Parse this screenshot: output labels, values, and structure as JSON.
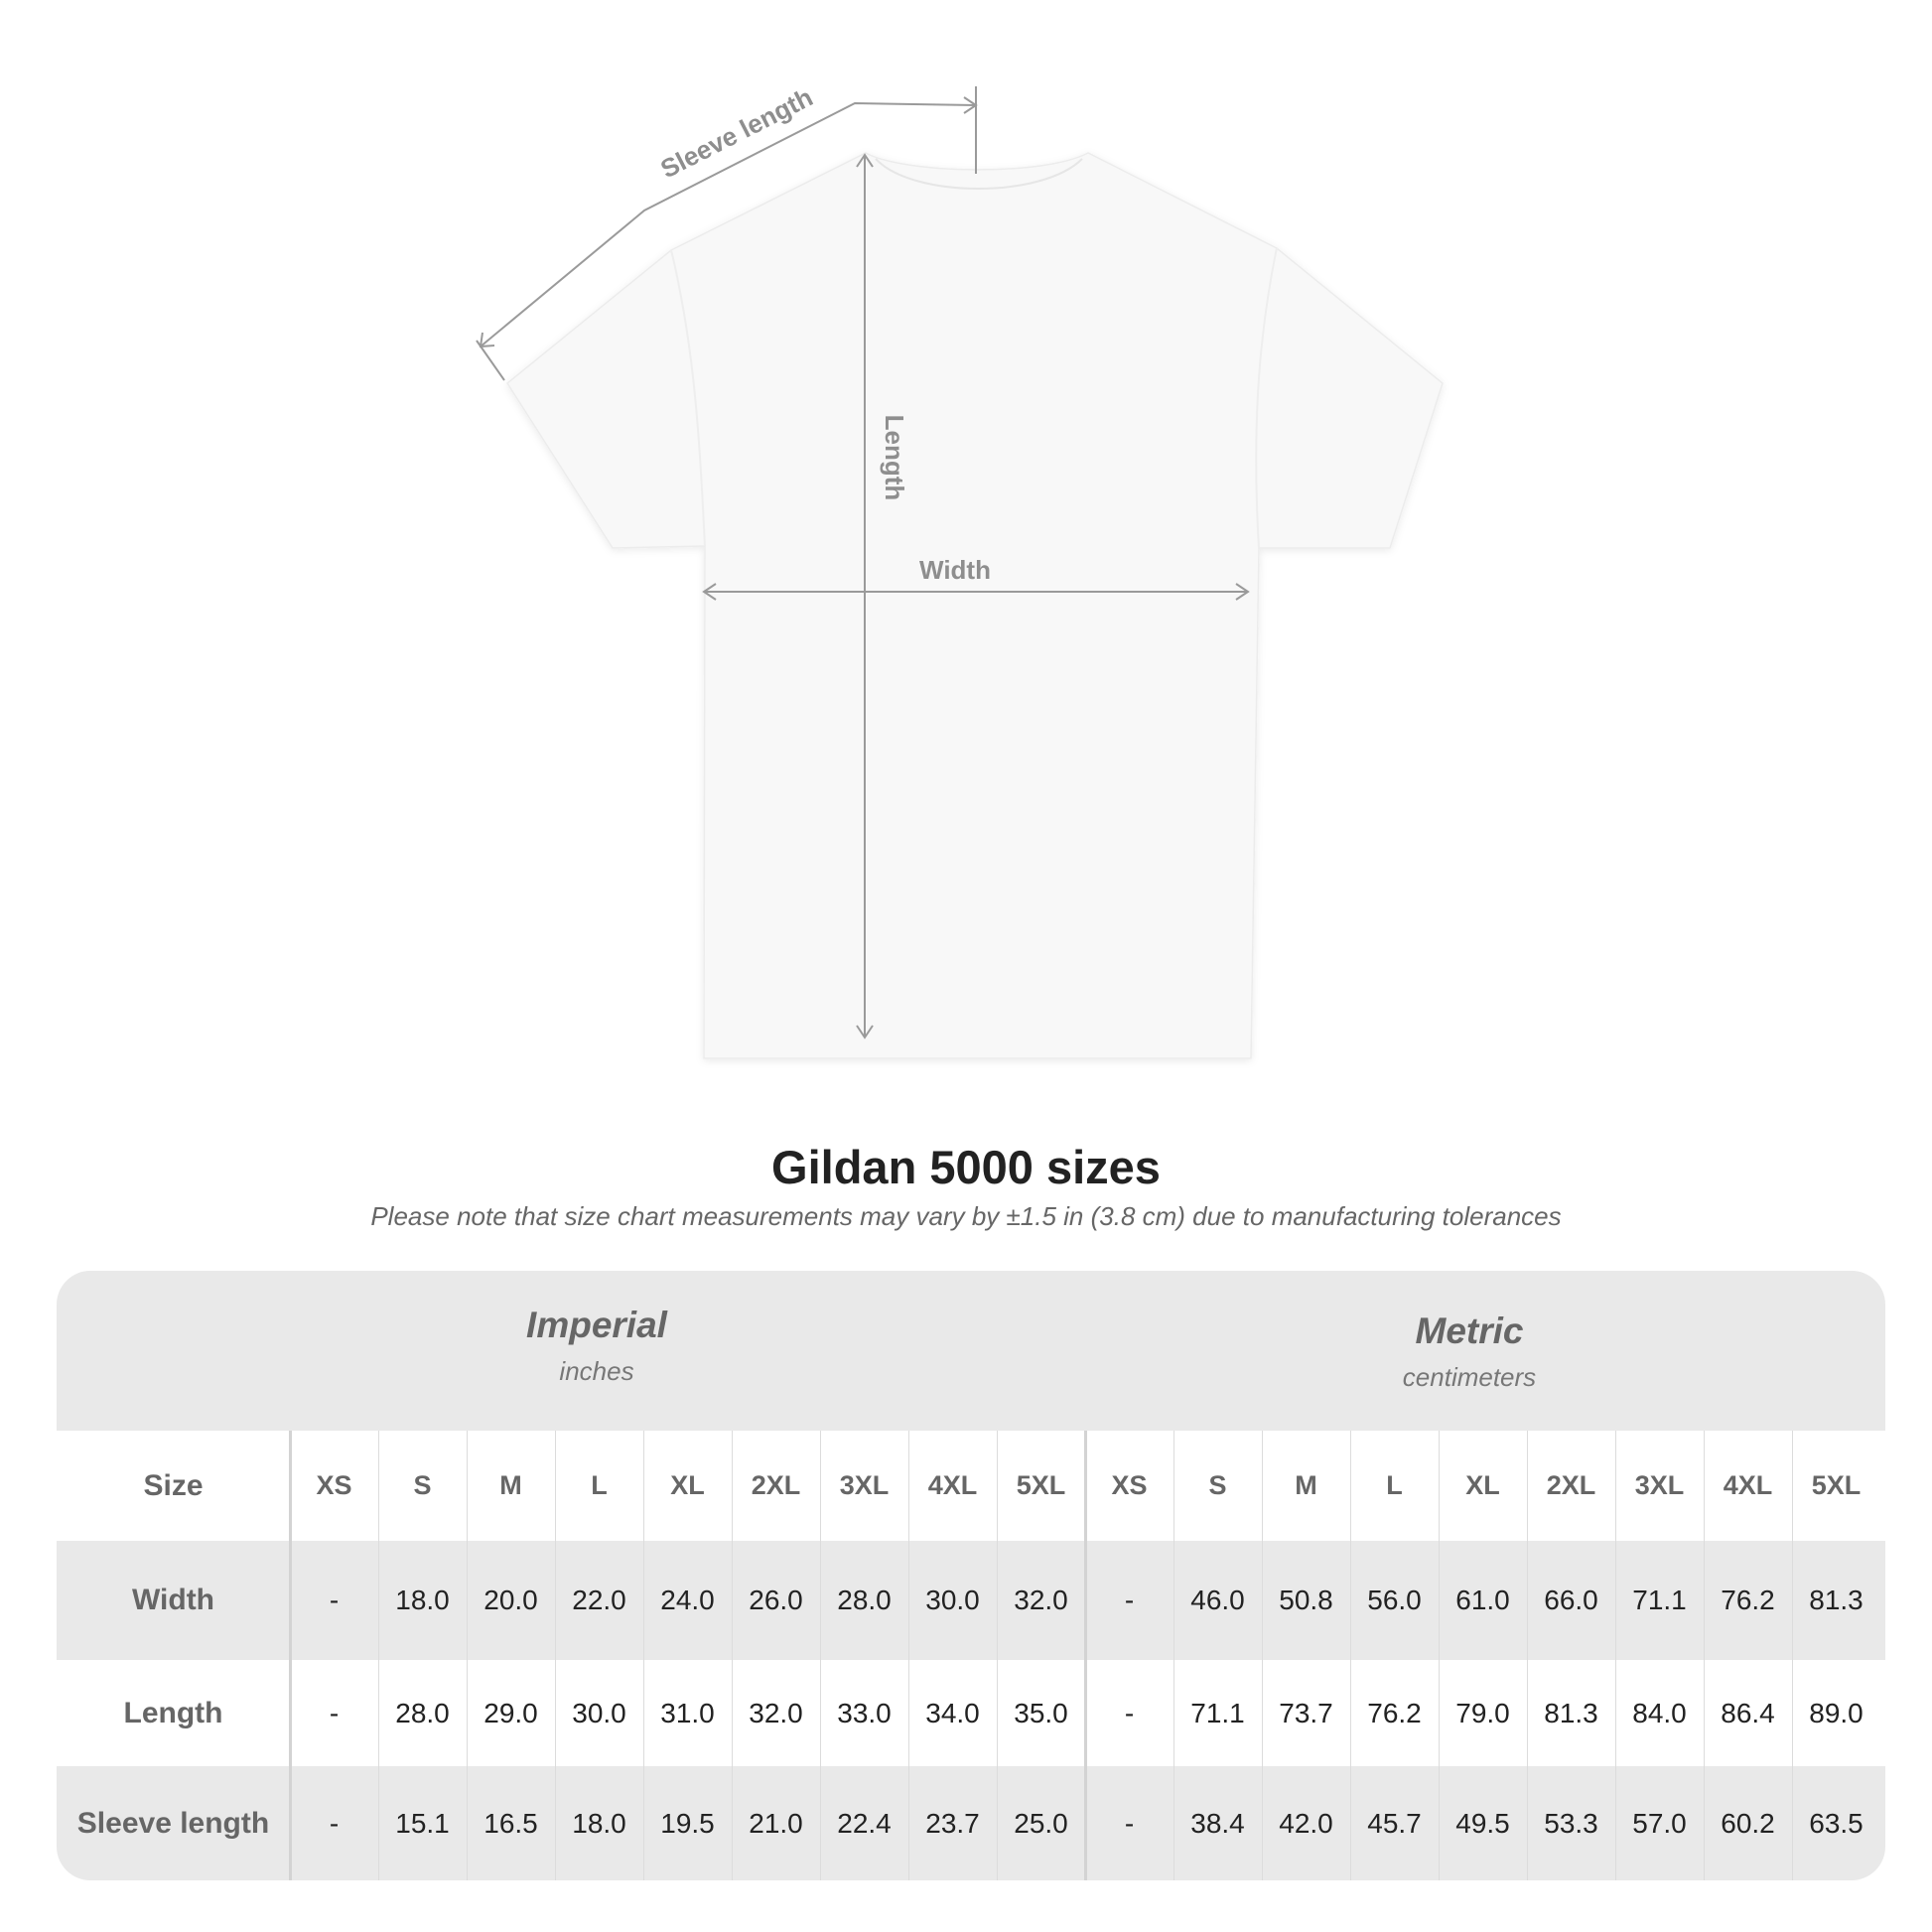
{
  "diagram": {
    "labels": {
      "sleeve_length": "Sleeve length",
      "length": "Length",
      "width": "Width"
    },
    "colors": {
      "shirt": "#f8f8f8",
      "measure_line": "#9a9a9a",
      "label": "#8e8e8e"
    }
  },
  "title": "Gildan 5000 sizes",
  "subtitle": "Please note that size chart measurements may vary by ±1.5 in (3.8 cm) due to manufacturing tolerances",
  "table": {
    "systems": [
      {
        "name": "Imperial",
        "unit": "inches"
      },
      {
        "name": "Metric",
        "unit": "centimeters"
      }
    ],
    "size_label": "Size",
    "sizes": [
      "XS",
      "S",
      "M",
      "L",
      "XL",
      "2XL",
      "3XL",
      "4XL",
      "5XL"
    ],
    "rows": [
      {
        "label": "Width",
        "imperial": [
          "-",
          "18.0",
          "20.0",
          "22.0",
          "24.0",
          "26.0",
          "28.0",
          "30.0",
          "32.0"
        ],
        "metric": [
          "-",
          "46.0",
          "50.8",
          "56.0",
          "61.0",
          "66.0",
          "71.1",
          "76.2",
          "81.3"
        ]
      },
      {
        "label": "Length",
        "imperial": [
          "-",
          "28.0",
          "29.0",
          "30.0",
          "31.0",
          "32.0",
          "33.0",
          "34.0",
          "35.0"
        ],
        "metric": [
          "-",
          "71.1",
          "73.7",
          "76.2",
          "79.0",
          "81.3",
          "84.0",
          "86.4",
          "89.0"
        ]
      },
      {
        "label": "Sleeve length",
        "imperial": [
          "-",
          "15.1",
          "16.5",
          "18.0",
          "19.5",
          "21.0",
          "22.4",
          "23.7",
          "25.0"
        ],
        "metric": [
          "-",
          "38.4",
          "42.0",
          "45.7",
          "49.5",
          "53.3",
          "57.0",
          "60.2",
          "63.5"
        ]
      }
    ],
    "colors": {
      "band": "#e9e9e9",
      "text": "#222222",
      "header_text": "#666666"
    }
  }
}
